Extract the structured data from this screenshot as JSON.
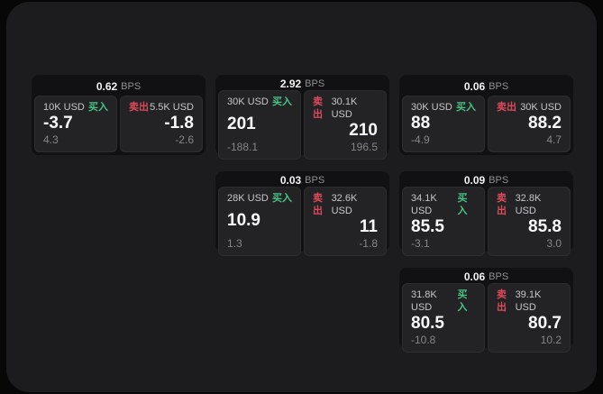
{
  "labels": {
    "bps": "BPS",
    "buy": "买入",
    "sell": "卖出"
  },
  "colors": {
    "buy_accent": "#46c383",
    "sell_accent": "#dd4a5b",
    "panel_background": "#1c1c1e",
    "card_background": "#111113",
    "tile_background": "#232326"
  },
  "cards": [
    {
      "spread": "0.62",
      "buy": {
        "size": "10K USD",
        "price": "-3.7",
        "delta": "4.3"
      },
      "sell": {
        "size": "5.5K USD",
        "price": "-1.8",
        "delta": "-2.6"
      }
    },
    {
      "spread": "2.92",
      "buy": {
        "size": "30K USD",
        "price": "201",
        "delta": "-188.1"
      },
      "sell": {
        "size": "30.1K USD",
        "price": "210",
        "delta": "196.5"
      }
    },
    {
      "spread": "0.06",
      "buy": {
        "size": "30K USD",
        "price": "88",
        "delta": "-4.9"
      },
      "sell": {
        "size": "30K USD",
        "price": "88.2",
        "delta": "4.7"
      }
    },
    {
      "spread": "0.03",
      "buy": {
        "size": "28K USD",
        "price": "10.9",
        "delta": "1.3"
      },
      "sell": {
        "size": "32.6K USD",
        "price": "11",
        "delta": "-1.8"
      }
    },
    {
      "spread": "0.09",
      "buy": {
        "size": "34.1K USD",
        "price": "85.5",
        "delta": "-3.1"
      },
      "sell": {
        "size": "32.8K USD",
        "price": "85.8",
        "delta": "3.0"
      }
    },
    {
      "spread": "0.06",
      "buy": {
        "size": "31.8K USD",
        "price": "80.5",
        "delta": "-10.8"
      },
      "sell": {
        "size": "39.1K USD",
        "price": "80.7",
        "delta": "10.2"
      }
    }
  ]
}
